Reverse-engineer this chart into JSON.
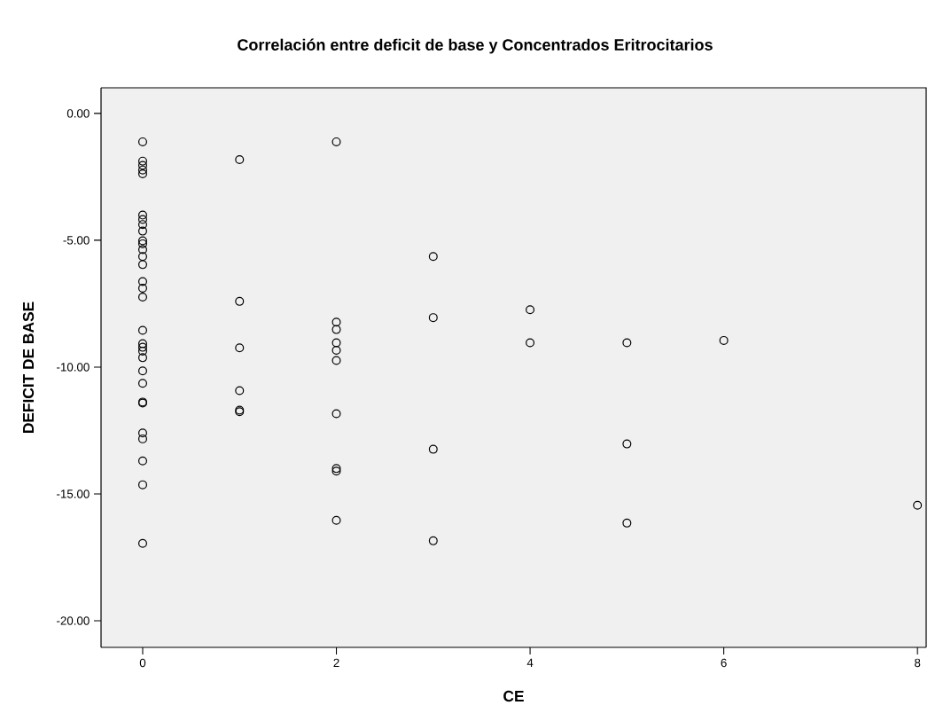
{
  "chart_data": {
    "type": "scatter",
    "title": "Correlación entre deficit de base  y Concentrados Eritrocitarios",
    "xlabel": "CE",
    "ylabel": "DEFICIT DE BASE",
    "marker": "circle",
    "grid": false,
    "xlim": [
      -0.43,
      8.09
    ],
    "ylim": [
      -21.05,
      1.01
    ],
    "xticks": [
      0,
      2,
      4,
      6,
      8
    ],
    "yticks": [
      {
        "value": 0,
        "label": "0.00"
      },
      {
        "value": -5,
        "label": "-5.00"
      },
      {
        "value": -10,
        "label": "-10.00"
      },
      {
        "value": -15,
        "label": "-15.00"
      },
      {
        "value": -20,
        "label": "-20.00"
      }
    ],
    "series": [
      {
        "color": "#000000",
        "x": [
          0,
          0,
          0,
          0,
          0,
          0,
          0,
          0,
          0,
          0,
          0,
          0,
          0,
          0,
          0,
          0,
          0,
          0,
          0,
          0,
          0,
          0,
          0,
          0,
          0,
          0,
          0,
          0,
          0,
          0,
          0,
          1,
          1,
          1,
          1,
          1,
          1,
          2,
          2,
          2,
          2,
          2,
          2,
          2,
          2,
          2,
          2,
          3,
          3,
          3,
          3,
          4,
          4,
          5,
          5,
          5,
          6,
          8
        ],
        "values": [
          -1.12,
          -1.88,
          -2.05,
          -2.23,
          -2.38,
          -4.01,
          -4.18,
          -4.38,
          -4.64,
          -5.02,
          -5.14,
          -5.37,
          -5.64,
          -5.96,
          -6.63,
          -6.89,
          -7.24,
          -8.55,
          -9.08,
          -9.22,
          -9.37,
          -9.63,
          -10.15,
          -10.64,
          -11.38,
          -11.42,
          -12.6,
          -12.83,
          -13.7,
          -14.64,
          -16.95,
          -1.82,
          -7.41,
          -9.24,
          -10.93,
          -11.7,
          -11.76,
          -1.12,
          -8.23,
          -8.52,
          -9.04,
          -9.34,
          -9.74,
          -11.84,
          -14.0,
          -14.1,
          -16.04,
          -5.64,
          -8.05,
          -13.24,
          -16.85,
          -7.74,
          -9.04,
          -9.04,
          -13.03,
          -16.15,
          -8.95,
          -15.45
        ]
      }
    ]
  }
}
